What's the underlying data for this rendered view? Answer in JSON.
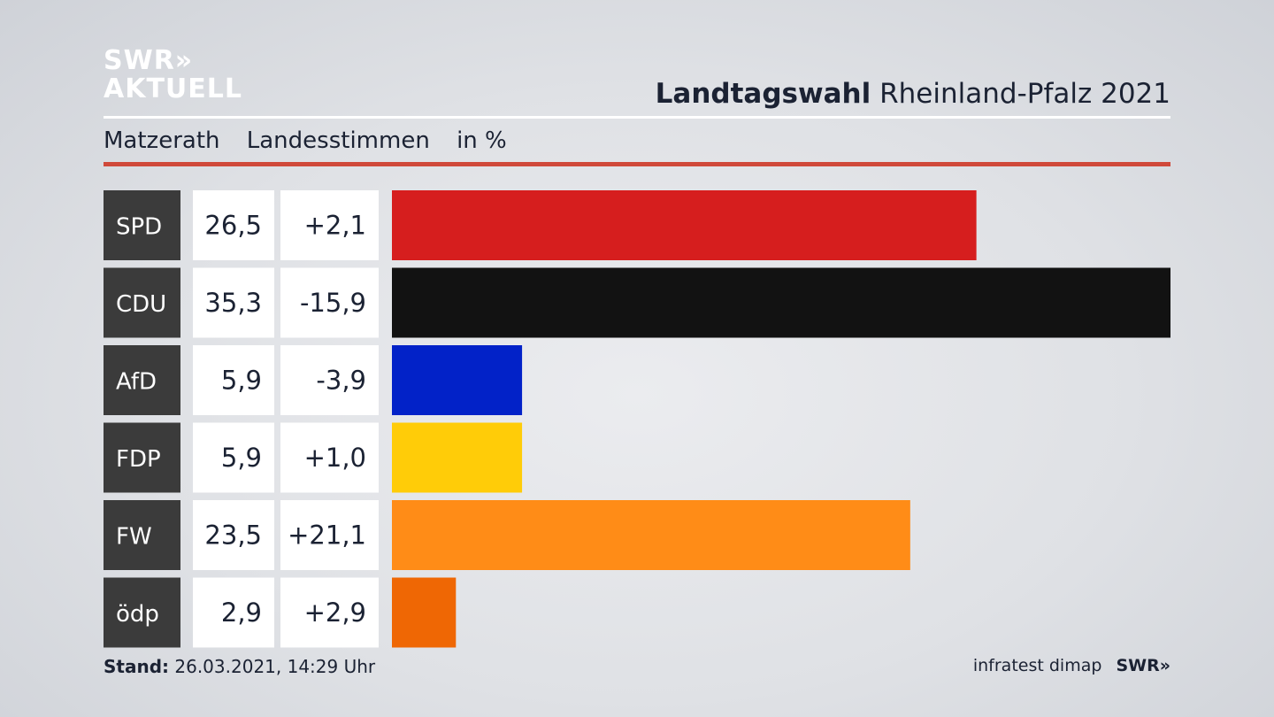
{
  "header": {
    "logo_line1": "SWR»",
    "logo_line2": "AKTUELL",
    "title_bold": "Landtagswahl",
    "title_rest": "Rheinland-Pfalz 2021",
    "subtitle_place": "Matzerath",
    "subtitle_type": "Landesstimmen",
    "subtitle_unit": "in %"
  },
  "colors": {
    "accent_rule": "#d0493a",
    "label_bg": "#3b3b3b"
  },
  "chart_data": {
    "type": "bar",
    "orientation": "horizontal",
    "categories": [
      "SPD",
      "CDU",
      "AfD",
      "FDP",
      "FW",
      "ödp"
    ],
    "values": [
      26.5,
      35.3,
      5.9,
      5.9,
      23.5,
      2.9
    ],
    "value_labels": [
      "26,5",
      "35,3",
      "5,9",
      "5,9",
      "23,5",
      "2,9"
    ],
    "change_labels": [
      "+2,1",
      "-15,9",
      "-3,9",
      "+1,0",
      "+21,1",
      "+2,9"
    ],
    "changes": [
      2.1,
      -15.9,
      -3.9,
      1.0,
      21.1,
      2.9
    ],
    "bar_colors": [
      "#d61e1e",
      "#121212",
      "#0222c8",
      "#ffcc08",
      "#ff8c17",
      "#ef6704"
    ],
    "xlim": [
      0,
      35.3
    ],
    "grid": false
  },
  "footer": {
    "stand_label": "Stand:",
    "stand_value": "26.03.2021, 14:29 Uhr",
    "source": "infratest dimap",
    "brand": "SWR»"
  }
}
